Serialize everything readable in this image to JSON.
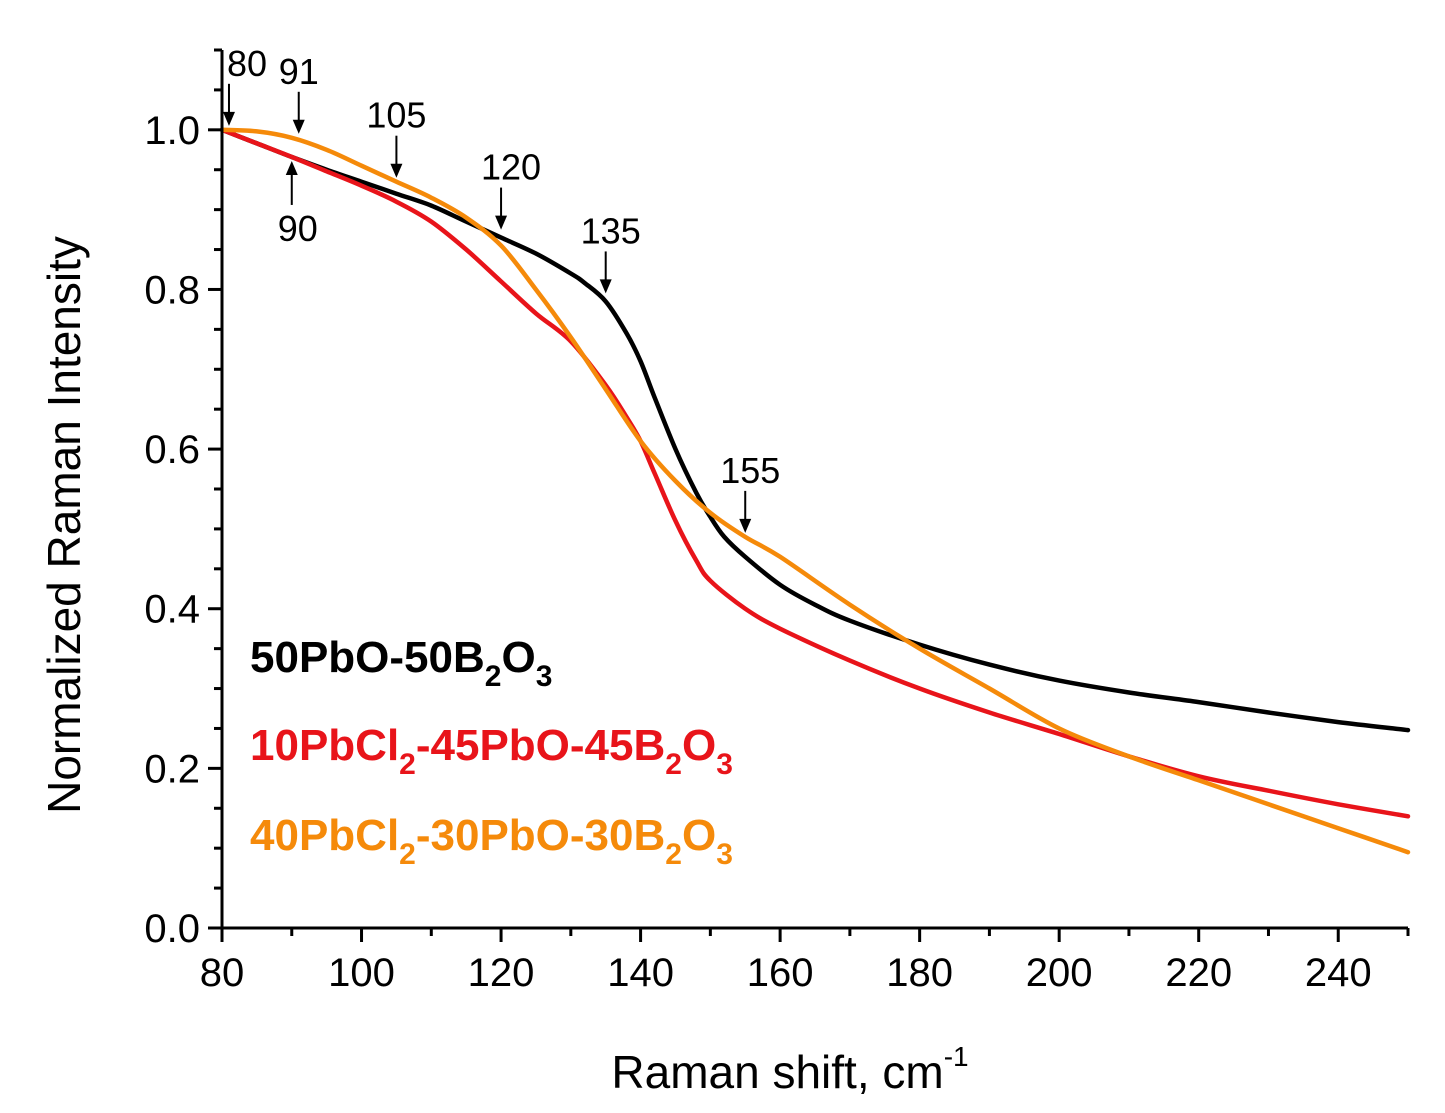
{
  "chart_data": {
    "type": "line",
    "xlabel": "Raman shift, cm",
    "xlabel_sup": "-1",
    "ylabel": "Normalized Raman Intensity",
    "xlim": [
      80,
      250
    ],
    "ylim": [
      0.0,
      1.1
    ],
    "x_ticks": [
      80,
      100,
      120,
      140,
      160,
      180,
      200,
      220,
      240
    ],
    "y_ticks": [
      0.0,
      0.2,
      0.4,
      0.6,
      0.8,
      1.0
    ],
    "y_tick_labels": [
      "0.0",
      "0.2",
      "0.4",
      "0.6",
      "0.8",
      "1.0"
    ],
    "grid": false,
    "legend_position": "bottom-left",
    "series": [
      {
        "legend_parts": [
          [
            "50PbO-50B",
            ""
          ],
          [
            "2",
            "sub"
          ],
          [
            "O",
            ""
          ],
          [
            "3",
            "sub"
          ]
        ],
        "color": "#000000",
        "x": [
          80,
          85,
          90,
          95,
          100,
          105,
          110,
          115,
          120,
          125,
          130,
          132,
          135,
          138,
          140,
          142,
          145,
          148,
          150,
          152,
          155,
          160,
          165,
          170,
          180,
          190,
          200,
          210,
          220,
          230,
          240,
          250
        ],
        "y": [
          1.0,
          0.983,
          0.966,
          0.95,
          0.935,
          0.92,
          0.905,
          0.885,
          0.865,
          0.845,
          0.82,
          0.808,
          0.785,
          0.745,
          0.71,
          0.665,
          0.6,
          0.545,
          0.515,
          0.49,
          0.465,
          0.43,
          0.405,
          0.385,
          0.355,
          0.33,
          0.31,
          0.295,
          0.283,
          0.27,
          0.258,
          0.248
        ]
      },
      {
        "legend_parts": [
          [
            "10PbCl",
            ""
          ],
          [
            "2",
            "sub"
          ],
          [
            "-45PbO-45B",
            ""
          ],
          [
            "2",
            "sub"
          ],
          [
            "O",
            ""
          ],
          [
            "3",
            "sub"
          ]
        ],
        "color": "#e8141a",
        "x": [
          80,
          85,
          90,
          95,
          100,
          105,
          110,
          115,
          120,
          125,
          130,
          135,
          138,
          140,
          142,
          145,
          148,
          150,
          155,
          160,
          170,
          180,
          190,
          200,
          210,
          220,
          230,
          240,
          250
        ],
        "y": [
          1.0,
          0.983,
          0.966,
          0.948,
          0.93,
          0.91,
          0.885,
          0.85,
          0.81,
          0.77,
          0.735,
          0.68,
          0.64,
          0.61,
          0.57,
          0.51,
          0.46,
          0.435,
          0.4,
          0.375,
          0.335,
          0.3,
          0.27,
          0.243,
          0.215,
          0.19,
          0.172,
          0.155,
          0.14
        ]
      },
      {
        "legend_parts": [
          [
            "40PbCl",
            ""
          ],
          [
            "2",
            "sub"
          ],
          [
            "-30PbO-30B",
            ""
          ],
          [
            "2",
            "sub"
          ],
          [
            "O",
            ""
          ],
          [
            "3",
            "sub"
          ]
        ],
        "color": "#f58a0a",
        "x": [
          80,
          85,
          90,
          95,
          100,
          105,
          110,
          115,
          120,
          125,
          130,
          135,
          140,
          145,
          150,
          155,
          160,
          170,
          180,
          190,
          200,
          210,
          220,
          230,
          240,
          250
        ],
        "y": [
          1.0,
          0.998,
          0.99,
          0.975,
          0.955,
          0.935,
          0.915,
          0.89,
          0.855,
          0.8,
          0.74,
          0.675,
          0.61,
          0.56,
          0.52,
          0.49,
          0.465,
          0.405,
          0.35,
          0.3,
          0.25,
          0.215,
          0.185,
          0.155,
          0.125,
          0.095
        ]
      }
    ],
    "annotations": [
      {
        "label": "80",
        "x": 81,
        "y": 1.0,
        "side": "above",
        "text_dx": 18
      },
      {
        "label": "91",
        "x": 91,
        "y": 0.99,
        "side": "above",
        "text_dx": 0
      },
      {
        "label": "105",
        "x": 105,
        "y": 0.935,
        "side": "above",
        "text_dx": 0
      },
      {
        "label": "120",
        "x": 120,
        "y": 0.87,
        "side": "above",
        "text_dx": 10
      },
      {
        "label": "135",
        "x": 135,
        "y": 0.79,
        "side": "above",
        "text_dx": 5
      },
      {
        "label": "155",
        "x": 155,
        "y": 0.49,
        "side": "above",
        "text_dx": 5
      },
      {
        "label": "90",
        "x": 90,
        "y": 0.966,
        "side": "below",
        "text_dx": 6
      }
    ]
  }
}
